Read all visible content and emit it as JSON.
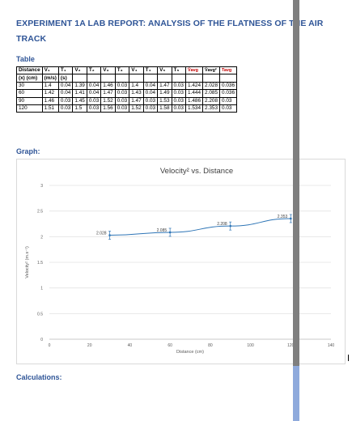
{
  "report": {
    "title": "EXPERIMENT 1A LAB REPORT: ANALYSIS OF THE FLATNESS OF THE AIR TRACK",
    "table_heading": "Table",
    "graph_heading": "Graph:",
    "calculations_heading": "Calculations:"
  },
  "table": {
    "header_row1": [
      "Distance",
      "V₁",
      "T₁",
      "V₂",
      "T₂",
      "V₃",
      "T₃",
      "V₄",
      "T₄",
      "V₅",
      "T₅",
      "V̄avg",
      "V̄avg²",
      "Tavg"
    ],
    "header_row2": [
      "(x) (cm)",
      "(m/s)",
      "(s)"
    ],
    "rows": [
      [
        "30",
        "1.4",
        "0.04",
        "1.39",
        "0.04",
        "1.46",
        "0.03",
        "1.4",
        "0.04",
        "1.47",
        "0.03",
        "1.424",
        "2.028",
        "0.036"
      ],
      [
        "60",
        "1.42",
        "0.04",
        "1.41",
        "0.04",
        "1.47",
        "0.03",
        "1.43",
        "0.04",
        "1.49",
        "0.03",
        "1.444",
        "2.085",
        "0.036"
      ],
      [
        "90",
        "1.46",
        "0.03",
        "1.45",
        "0.03",
        "1.52",
        "0.03",
        "1.47",
        "0.03",
        "1.53",
        "0.03",
        "1.486",
        "2.208",
        "0.03"
      ],
      [
        "120",
        "1.51",
        "0.03",
        "1.5",
        "0.03",
        "1.56",
        "0.03",
        "1.52",
        "0.03",
        "1.58",
        "0.03",
        "1.534",
        "2.353",
        "0.03"
      ]
    ]
  },
  "chart_data": {
    "type": "line",
    "title": "Velocity² vs. Distance",
    "xlabel": "Distance (cm)",
    "ylabel": "Velocity² (m.s⁻¹)",
    "xlim": [
      0,
      140
    ],
    "ylim": [
      0,
      3
    ],
    "xticks": [
      0,
      20,
      40,
      60,
      80,
      100,
      120,
      140
    ],
    "yticks": [
      0,
      0.5,
      1,
      1.5,
      2,
      2.5,
      3
    ],
    "grid": "horizontal",
    "series": [
      {
        "x": [
          30,
          60,
          90,
          120
        ],
        "y": [
          2.028,
          2.085,
          2.208,
          2.353
        ],
        "labels": [
          "2.028",
          "2.085",
          "2.208",
          "2.353"
        ],
        "color": "#2e75b6"
      }
    ]
  }
}
